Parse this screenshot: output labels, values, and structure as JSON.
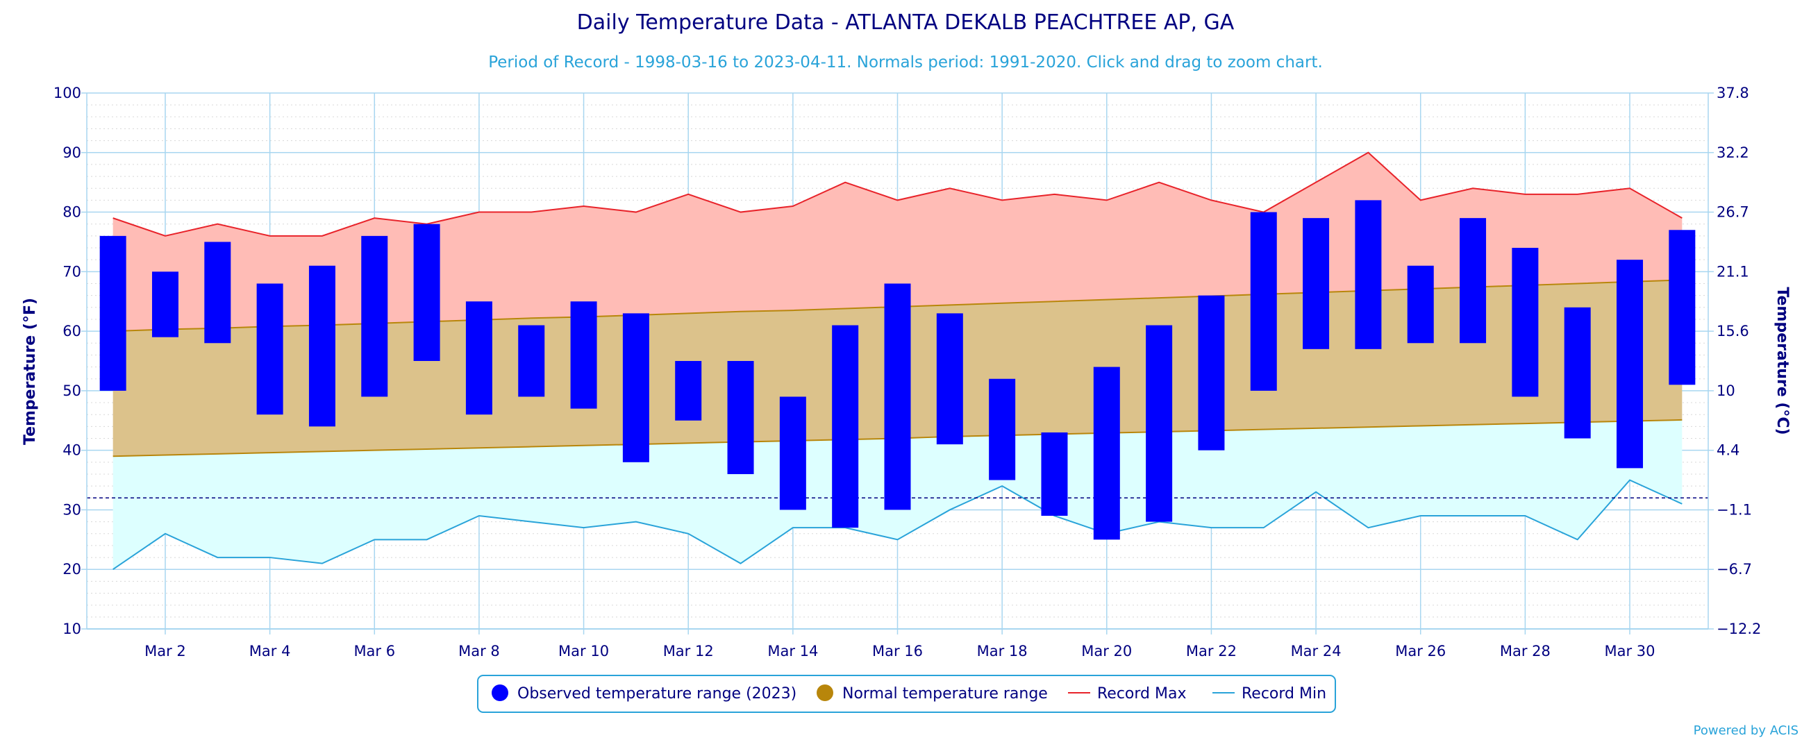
{
  "chart_data": {
    "type": "bar",
    "title": "Daily Temperature Data - ATLANTA DEKALB PEACHTREE AP, GA",
    "subtitle": "Period of Record - 1998-03-16 to 2023-04-11. Normals period: 1991-2020. Click and drag to zoom chart.",
    "ylabel": "Temperature (°F)",
    "y2label": "Temperature (°C)",
    "ylim": [
      10,
      100
    ],
    "yticks": [
      "10",
      "20",
      "30",
      "40",
      "50",
      "60",
      "70",
      "80",
      "90",
      "100"
    ],
    "y2ticks": [
      "−12.2",
      "−6.7",
      "−1.1",
      "4.4",
      "10",
      "15.6",
      "21.1",
      "26.7",
      "32.2",
      "37.8"
    ],
    "xlim": [
      0.5,
      31.5
    ],
    "xticks": [
      {
        "day": 2,
        "label": "Mar 2"
      },
      {
        "day": 4,
        "label": "Mar 4"
      },
      {
        "day": 6,
        "label": "Mar 6"
      },
      {
        "day": 8,
        "label": "Mar 8"
      },
      {
        "day": 10,
        "label": "Mar 10"
      },
      {
        "day": 12,
        "label": "Mar 12"
      },
      {
        "day": 14,
        "label": "Mar 14"
      },
      {
        "day": 16,
        "label": "Mar 16"
      },
      {
        "day": 18,
        "label": "Mar 18"
      },
      {
        "day": 20,
        "label": "Mar 20"
      },
      {
        "day": 22,
        "label": "Mar 22"
      },
      {
        "day": 24,
        "label": "Mar 24"
      },
      {
        "day": 26,
        "label": "Mar 26"
      },
      {
        "day": 28,
        "label": "Mar 28"
      },
      {
        "day": 30,
        "label": "Mar 30"
      }
    ],
    "freezing_line": 32,
    "days": [
      1,
      2,
      3,
      4,
      5,
      6,
      7,
      8,
      9,
      10,
      11,
      12,
      13,
      14,
      15,
      16,
      17,
      18,
      19,
      20,
      21,
      22,
      23,
      24,
      25,
      26,
      27,
      28,
      29,
      30,
      31
    ],
    "observed_low": [
      50,
      59,
      58,
      46,
      44,
      49,
      55,
      46,
      49,
      47,
      38,
      45,
      36,
      30,
      27,
      30,
      41,
      35,
      29,
      25,
      28,
      40,
      50,
      57,
      57,
      58,
      58,
      49,
      42,
      37,
      51
    ],
    "observed_high": [
      76,
      70,
      75,
      68,
      71,
      76,
      78,
      65,
      61,
      65,
      63,
      55,
      55,
      49,
      61,
      68,
      63,
      52,
      43,
      54,
      61,
      66,
      80,
      79,
      82,
      71,
      79,
      74,
      64,
      72,
      77
    ],
    "normal_low": [
      39,
      39.2,
      39.4,
      39.6,
      39.8,
      40,
      40.2,
      40.4,
      40.6,
      40.8,
      41,
      41.2,
      41.4,
      41.6,
      41.8,
      42,
      42.3,
      42.5,
      42.7,
      42.9,
      43.1,
      43.3,
      43.5,
      43.7,
      43.9,
      44.1,
      44.3,
      44.5,
      44.7,
      44.9,
      45.1
    ],
    "normal_high": [
      60,
      60.3,
      60.5,
      60.8,
      61,
      61.3,
      61.6,
      61.9,
      62.2,
      62.4,
      62.7,
      63,
      63.3,
      63.5,
      63.8,
      64.1,
      64.4,
      64.7,
      65,
      65.3,
      65.6,
      65.9,
      66.2,
      66.5,
      66.8,
      67.1,
      67.4,
      67.7,
      68,
      68.3,
      68.6
    ],
    "record_max": [
      79,
      76,
      78,
      76,
      76,
      79,
      78,
      80,
      80,
      81,
      80,
      83,
      80,
      81,
      85,
      82,
      84,
      82,
      83,
      82,
      85,
      82,
      80,
      85,
      90,
      82,
      84,
      83,
      83,
      84,
      79
    ],
    "record_min": [
      20,
      26,
      22,
      22,
      21,
      25,
      25,
      29,
      28,
      27,
      28,
      26,
      21,
      27,
      27,
      25,
      30,
      34,
      29,
      26,
      28,
      27,
      27,
      33,
      27,
      29,
      29,
      29,
      25,
      35,
      31
    ],
    "legend": [
      {
        "label": "Observed temperature range (2023)",
        "symbol": "dot",
        "color": "#0000ff"
      },
      {
        "label": "Normal temperature range",
        "symbol": "dot",
        "color": "#b8860b"
      },
      {
        "label": "Record Max",
        "symbol": "line",
        "color": "#e8232a"
      },
      {
        "label": "Record Min",
        "symbol": "line",
        "color": "#29a3d9"
      }
    ],
    "legend_position": "bottom-center",
    "grid": true,
    "credit": "Powered by ACIS",
    "colors": {
      "observed": "#0000ff",
      "normal_fill": "#dcc28b",
      "normal_line": "#b8860b",
      "record_max_fill": "#ffbcb6",
      "record_max_line": "#e8232a",
      "record_min_fill": "#ddffff",
      "record_min_line": "#29a3d9",
      "grid": "#a8d6f0",
      "freezing": "#000080"
    }
  }
}
